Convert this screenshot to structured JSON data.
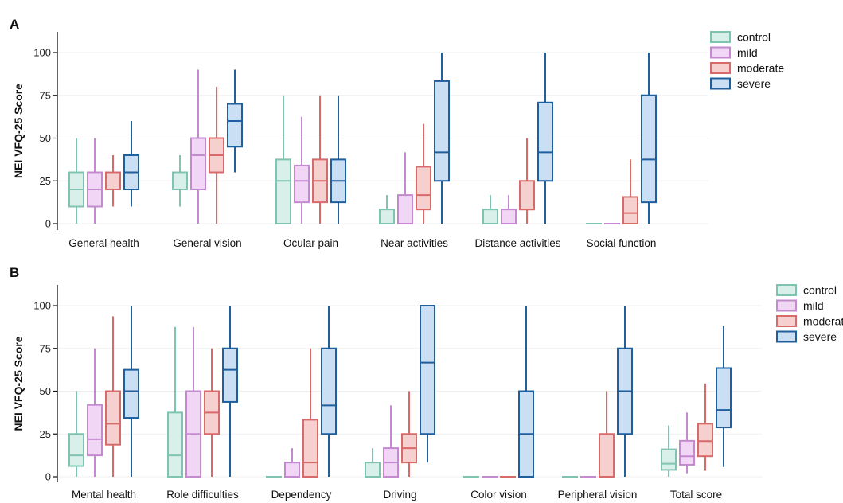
{
  "chart_data": [
    {
      "panel": "A",
      "type": "box",
      "ylabel": "NEI VFQ-25 Score",
      "ylim": [
        0,
        100
      ],
      "yticks": [
        0,
        25,
        50,
        75,
        100
      ],
      "grid": true,
      "legend": "top-right",
      "series_names": [
        "control",
        "mild",
        "moderate",
        "severe"
      ],
      "series_colors": {
        "control": {
          "fill": "#d9f0ea",
          "stroke": "#7fc4b0"
        },
        "mild": {
          "fill": "#f2d6f6",
          "stroke": "#c48ad0"
        },
        "moderate": {
          "fill": "#f6cfcf",
          "stroke": "#d86a6a"
        },
        "severe": {
          "fill": "#cadef4",
          "stroke": "#1f5f9e"
        }
      },
      "categories": [
        {
          "label": "General health",
          "boxes": [
            [
              0,
              10,
              20,
              30,
              50
            ],
            [
              0,
              10,
              20,
              30,
              50
            ],
            [
              10,
              20,
              20,
              30,
              40
            ],
            [
              10,
              20,
              30,
              40,
              60
            ]
          ]
        },
        {
          "label": "General vision",
          "boxes": [
            [
              10,
              20,
              20,
              30,
              40
            ],
            [
              0,
              20,
              40,
              50,
              90
            ],
            [
              0,
              30,
              40,
              50,
              80
            ],
            [
              30,
              45,
              60,
              70,
              90
            ]
          ]
        },
        {
          "label": "Ocular pain",
          "boxes": [
            [
              0,
              0,
              25,
              37.5,
              75
            ],
            [
              0,
              12.5,
              25,
              34,
              62.5
            ],
            [
              0,
              12.5,
              25,
              37.5,
              75
            ],
            [
              0,
              12.5,
              25,
              37.5,
              75
            ]
          ]
        },
        {
          "label": "Near activities",
          "boxes": [
            [
              0,
              0,
              0,
              8.3,
              16.7
            ],
            [
              0,
              0,
              0,
              16.7,
              41.7
            ],
            [
              0,
              8.3,
              16.7,
              33.3,
              58.3
            ],
            [
              0,
              25,
              41.7,
              83.3,
              100
            ]
          ]
        },
        {
          "label": "Distance activities",
          "boxes": [
            [
              0,
              0,
              0,
              8.3,
              16.7
            ],
            [
              0,
              0,
              0,
              8.3,
              16.7
            ],
            [
              0,
              8.3,
              8.3,
              25,
              50
            ],
            [
              0,
              25,
              41.7,
              70.8,
              100
            ]
          ]
        },
        {
          "label": "Social function",
          "boxes": [
            [
              0,
              0,
              0,
              0,
              0
            ],
            [
              0,
              0,
              0,
              0,
              0
            ],
            [
              0,
              0,
              6.25,
              15.6,
              37.5
            ],
            [
              0,
              12.5,
              37.5,
              75,
              100
            ]
          ]
        }
      ]
    },
    {
      "panel": "B",
      "type": "box",
      "ylabel": "NEI VFQ-25 Score",
      "ylim": [
        0,
        100
      ],
      "yticks": [
        0,
        25,
        50,
        75,
        100
      ],
      "grid": true,
      "legend": "top-right",
      "series_names": [
        "control",
        "mild",
        "moderate",
        "severe"
      ],
      "series_colors": {
        "control": {
          "fill": "#d9f0ea",
          "stroke": "#7fc4b0"
        },
        "mild": {
          "fill": "#f2d6f6",
          "stroke": "#c48ad0"
        },
        "moderate": {
          "fill": "#f6cfcf",
          "stroke": "#d86a6a"
        },
        "severe": {
          "fill": "#cadef4",
          "stroke": "#1f5f9e"
        }
      },
      "categories": [
        {
          "label": "Mental health",
          "boxes": [
            [
              0,
              6.25,
              12.5,
              25,
              50
            ],
            [
              0,
              12.5,
              21.9,
              42,
              75
            ],
            [
              0,
              18.75,
              31,
              50,
              93.75
            ],
            [
              0,
              34.4,
              50,
              62.5,
              100
            ]
          ]
        },
        {
          "label": "Role difficulties",
          "boxes": [
            [
              0,
              0,
              12.5,
              37.5,
              87.5
            ],
            [
              0,
              0,
              25,
              50,
              87.5
            ],
            [
              0,
              25,
              37.5,
              50,
              75
            ],
            [
              0,
              43.75,
              62.5,
              75,
              100
            ]
          ]
        },
        {
          "label": "Dependency",
          "boxes": [
            [
              0,
              0,
              0,
              0,
              0
            ],
            [
              0,
              0,
              0,
              8.3,
              16.7
            ],
            [
              0,
              0,
              8.3,
              33.3,
              75
            ],
            [
              0,
              25,
              41.7,
              75,
              100
            ]
          ]
        },
        {
          "label": "Driving",
          "boxes": [
            [
              0,
              0,
              0,
              8.3,
              16.7
            ],
            [
              0,
              0,
              8.3,
              16.7,
              41.7
            ],
            [
              0,
              8.3,
              16.7,
              25,
              50
            ],
            [
              8.3,
              25,
              66.7,
              100,
              100
            ]
          ]
        },
        {
          "label": "Color vision",
          "boxes": [
            [
              0,
              0,
              0,
              0,
              0
            ],
            [
              0,
              0,
              0,
              0,
              0
            ],
            [
              0,
              0,
              0,
              0,
              0
            ],
            [
              0,
              0,
              25,
              50,
              100
            ]
          ]
        },
        {
          "label": "Peripheral vision",
          "boxes": [
            [
              0,
              0,
              0,
              0,
              0
            ],
            [
              0,
              0,
              0,
              0,
              0
            ],
            [
              0,
              0,
              0,
              25,
              50
            ],
            [
              0,
              25,
              50,
              75,
              100
            ]
          ]
        },
        {
          "label": "Total score",
          "boxes": [
            [
              0,
              4,
              7.6,
              16,
              30
            ],
            [
              2,
              7,
              12,
              21,
              37.5
            ],
            [
              3.5,
              12,
              20.8,
              31,
              54.5
            ],
            [
              5.7,
              28.8,
              39,
              63.5,
              88
            ]
          ]
        }
      ]
    }
  ]
}
